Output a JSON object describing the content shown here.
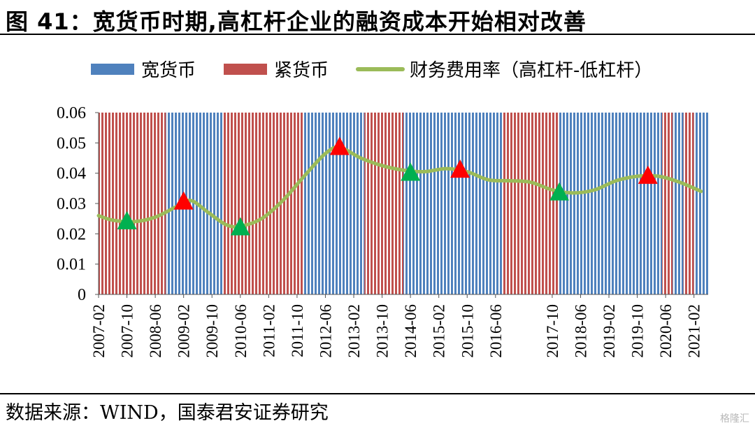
{
  "figure": {
    "title": "图 41：宽货币时期,高杠杆企业的融资成本开始相对改善",
    "source": "数据来源：WIND，国泰君安证券研究",
    "watermark": "格隆汇"
  },
  "colors": {
    "loose": "#4f81bd",
    "tight": "#c0504d",
    "line": "#9bbb59",
    "marker_up": "#ff0000",
    "marker_down": "#00b050"
  },
  "chart_data": {
    "type": "line",
    "title": "",
    "xlabel": "",
    "ylabel": "",
    "ylim": [
      0,
      0.06
    ],
    "yticks": [
      0,
      0.01,
      0.02,
      0.03,
      0.04,
      0.05,
      0.06
    ],
    "ytick_labels": [
      "0",
      "0.01",
      "0.02",
      "0.03",
      "0.04",
      "0.05",
      "0.06"
    ],
    "x_tick_labels": [
      "2007-02",
      "2007-10",
      "2008-06",
      "2009-02",
      "2009-10",
      "2010-06",
      "2011-02",
      "2011-10",
      "2012-06",
      "2013-02",
      "2013-10",
      "2014-06",
      "2015-02",
      "2015-10",
      "2016-06",
      "2017-10",
      "2018-06",
      "2019-02",
      "2019-10",
      "2020-06",
      "2021-02"
    ],
    "x_range": [
      "2007-02",
      "2021-06"
    ],
    "grid": "vertical stripes only",
    "legend_position": "top",
    "legend": [
      "宽货币",
      "紧货币",
      "财务费用率（高杠杆-低杠杆）"
    ],
    "regimes": [
      {
        "start": "2007-02",
        "end": "2008-09",
        "type": "tight"
      },
      {
        "start": "2008-09",
        "end": "2010-01",
        "type": "loose"
      },
      {
        "start": "2010-01",
        "end": "2011-12",
        "type": "tight"
      },
      {
        "start": "2011-12",
        "end": "2013-05",
        "type": "loose"
      },
      {
        "start": "2013-05",
        "end": "2014-04",
        "type": "tight"
      },
      {
        "start": "2014-04",
        "end": "2016-08",
        "type": "loose"
      },
      {
        "start": "2016-08",
        "end": "2017-12",
        "type": "tight"
      },
      {
        "start": "2017-12",
        "end": "2020-05",
        "type": "loose"
      },
      {
        "start": "2020-05",
        "end": "2020-08",
        "type": "tight"
      },
      {
        "start": "2020-08",
        "end": "2020-11",
        "type": "loose"
      },
      {
        "start": "2020-11",
        "end": "2021-02",
        "type": "tight"
      },
      {
        "start": "2021-02",
        "end": "2021-06",
        "type": "loose"
      }
    ],
    "series": [
      {
        "name": "财务费用率（高杠杆-低杠杆）",
        "x": [
          "2007-02",
          "2007-06",
          "2007-12",
          "2008-06",
          "2008-12",
          "2009-04",
          "2009-09",
          "2010-02",
          "2010-06",
          "2010-12",
          "2011-06",
          "2011-12",
          "2012-06",
          "2012-10",
          "2013-04",
          "2013-10",
          "2014-04",
          "2014-10",
          "2015-04",
          "2015-10",
          "2016-04",
          "2016-10",
          "2017-04",
          "2017-10",
          "2018-04",
          "2018-10",
          "2019-04",
          "2019-10",
          "2020-04",
          "2020-10",
          "2021-04"
        ],
        "values": [
          0.026,
          0.0245,
          0.024,
          0.0255,
          0.029,
          0.031,
          0.027,
          0.023,
          0.0225,
          0.025,
          0.031,
          0.039,
          0.0465,
          0.0485,
          0.045,
          0.0425,
          0.041,
          0.0405,
          0.0415,
          0.0405,
          0.0378,
          0.0375,
          0.037,
          0.0345,
          0.0335,
          0.0345,
          0.0375,
          0.039,
          0.039,
          0.037,
          0.034
        ]
      }
    ],
    "markers": [
      {
        "x": "2007-10",
        "y": 0.0245,
        "kind": "trough"
      },
      {
        "x": "2009-02",
        "y": 0.031,
        "kind": "peak"
      },
      {
        "x": "2010-06",
        "y": 0.0225,
        "kind": "trough"
      },
      {
        "x": "2012-10",
        "y": 0.049,
        "kind": "peak"
      },
      {
        "x": "2014-06",
        "y": 0.0405,
        "kind": "trough"
      },
      {
        "x": "2015-08",
        "y": 0.0415,
        "kind": "peak"
      },
      {
        "x": "2017-12",
        "y": 0.034,
        "kind": "trough"
      },
      {
        "x": "2020-01",
        "y": 0.0395,
        "kind": "peak"
      }
    ]
  }
}
